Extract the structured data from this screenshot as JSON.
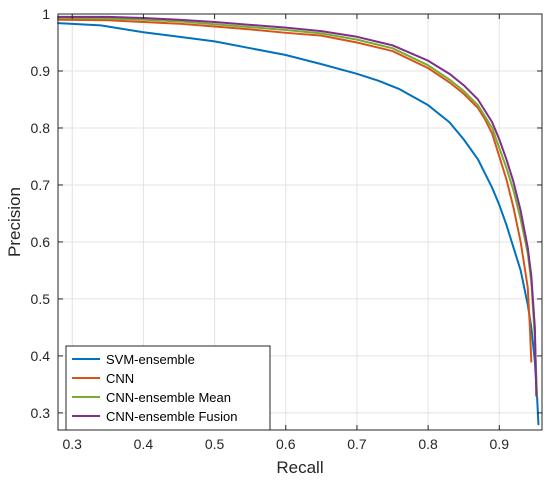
{
  "chart_data": {
    "type": "line",
    "title": "",
    "xlabel": "Recall",
    "ylabel": "Precision",
    "xlim": [
      0.28,
      0.96
    ],
    "ylim": [
      0.27,
      1.0
    ],
    "xticks": [
      0.3,
      0.4,
      0.5,
      0.6,
      0.7,
      0.8,
      0.9
    ],
    "xtick_labels": [
      "0.3",
      "0.4",
      "0.5",
      "0.6",
      "0.7",
      "0.8",
      "0.9"
    ],
    "yticks": [
      0.3,
      0.4,
      0.5,
      0.6,
      0.7,
      0.8,
      0.9,
      1.0
    ],
    "ytick_labels": [
      "0.3",
      "0.4",
      "0.5",
      "0.6",
      "0.7",
      "0.8",
      "0.9",
      "1"
    ],
    "grid": true,
    "legend_position": "bottom-left",
    "series": [
      {
        "name": "SVM-ensemble",
        "color": "#0072BD",
        "x": [
          0.28,
          0.34,
          0.4,
          0.45,
          0.5,
          0.55,
          0.6,
          0.65,
          0.7,
          0.73,
          0.76,
          0.8,
          0.83,
          0.85,
          0.87,
          0.88,
          0.89,
          0.9,
          0.91,
          0.92,
          0.93,
          0.935,
          0.94,
          0.945,
          0.95,
          0.953,
          0.955
        ],
        "y": [
          0.984,
          0.98,
          0.968,
          0.96,
          0.952,
          0.94,
          0.928,
          0.912,
          0.895,
          0.883,
          0.868,
          0.84,
          0.81,
          0.78,
          0.745,
          0.72,
          0.695,
          0.665,
          0.63,
          0.59,
          0.55,
          0.52,
          0.49,
          0.45,
          0.39,
          0.33,
          0.28
        ]
      },
      {
        "name": "CNN",
        "color": "#D95319",
        "x": [
          0.28,
          0.35,
          0.4,
          0.45,
          0.5,
          0.55,
          0.6,
          0.65,
          0.7,
          0.75,
          0.8,
          0.83,
          0.85,
          0.87,
          0.88,
          0.89,
          0.9,
          0.91,
          0.92,
          0.93,
          0.935,
          0.94,
          0.943,
          0.945
        ],
        "y": [
          0.99,
          0.989,
          0.986,
          0.983,
          0.978,
          0.973,
          0.967,
          0.962,
          0.95,
          0.935,
          0.905,
          0.88,
          0.86,
          0.835,
          0.815,
          0.79,
          0.75,
          0.71,
          0.66,
          0.6,
          0.56,
          0.52,
          0.45,
          0.39
        ]
      },
      {
        "name": "CNN-ensemble Mean",
        "color": "#77AC30",
        "x": [
          0.28,
          0.35,
          0.4,
          0.45,
          0.5,
          0.55,
          0.6,
          0.65,
          0.7,
          0.75,
          0.8,
          0.83,
          0.85,
          0.87,
          0.88,
          0.89,
          0.9,
          0.91,
          0.92,
          0.93,
          0.94,
          0.945,
          0.95,
          0.953
        ],
        "y": [
          0.993,
          0.992,
          0.99,
          0.987,
          0.982,
          0.977,
          0.972,
          0.966,
          0.955,
          0.94,
          0.91,
          0.885,
          0.865,
          0.84,
          0.82,
          0.8,
          0.765,
          0.73,
          0.69,
          0.64,
          0.58,
          0.53,
          0.43,
          0.33
        ]
      },
      {
        "name": "CNN-ensemble Fusion",
        "color": "#7E2F8E",
        "x": [
          0.28,
          0.35,
          0.4,
          0.45,
          0.5,
          0.55,
          0.6,
          0.65,
          0.7,
          0.75,
          0.8,
          0.83,
          0.85,
          0.87,
          0.88,
          0.89,
          0.9,
          0.91,
          0.92,
          0.93,
          0.94,
          0.945,
          0.95,
          0.952
        ],
        "y": [
          0.995,
          0.995,
          0.993,
          0.99,
          0.986,
          0.981,
          0.976,
          0.97,
          0.96,
          0.945,
          0.918,
          0.895,
          0.875,
          0.85,
          0.83,
          0.81,
          0.78,
          0.745,
          0.705,
          0.655,
          0.59,
          0.54,
          0.45,
          0.33
        ]
      }
    ]
  }
}
